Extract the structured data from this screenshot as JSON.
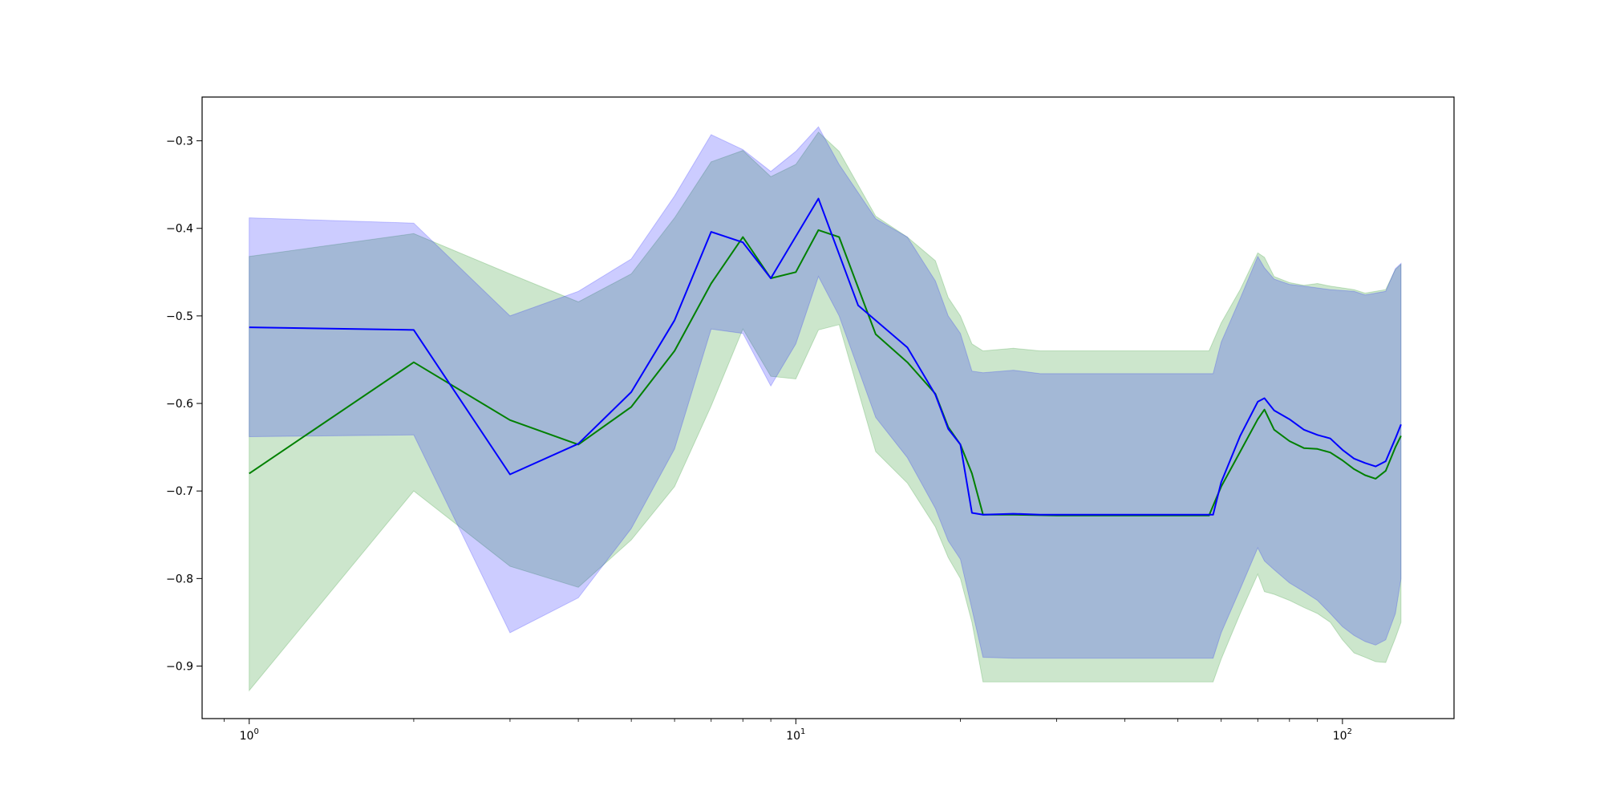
{
  "chart_data": {
    "type": "area",
    "xscale": "log",
    "xlim": [
      0.82,
      160
    ],
    "ylim": [
      -0.96,
      -0.25
    ],
    "x_ticks": [
      {
        "value": 1,
        "base": "10",
        "exp": "0"
      },
      {
        "value": 10,
        "base": "10",
        "exp": "1"
      },
      {
        "value": 100,
        "base": "10",
        "exp": "2"
      }
    ],
    "y_ticks": [
      {
        "value": -0.3,
        "label": "−0.3"
      },
      {
        "value": -0.4,
        "label": "−0.4"
      },
      {
        "value": -0.5,
        "label": "−0.5"
      },
      {
        "value": -0.6,
        "label": "−0.6"
      },
      {
        "value": -0.7,
        "label": "−0.7"
      },
      {
        "value": -0.8,
        "label": "−0.8"
      },
      {
        "value": -0.9,
        "label": "−0.9"
      }
    ],
    "grid": false,
    "series": [
      {
        "color": "#008000",
        "fill_color": "#008000",
        "fill_opacity": 0.2,
        "line": [
          [
            1,
            -0.68
          ],
          [
            2,
            -0.553
          ],
          [
            3,
            -0.619
          ],
          [
            4,
            -0.647
          ],
          [
            5,
            -0.604
          ],
          [
            6,
            -0.54
          ],
          [
            7,
            -0.463
          ],
          [
            8,
            -0.41
          ],
          [
            9,
            -0.457
          ],
          [
            10,
            -0.45
          ],
          [
            11,
            -0.402
          ],
          [
            12,
            -0.41
          ],
          [
            14,
            -0.521
          ],
          [
            16,
            -0.553
          ],
          [
            18,
            -0.589
          ],
          [
            19,
            -0.627
          ],
          [
            20,
            -0.647
          ],
          [
            21,
            -0.68
          ],
          [
            22,
            -0.727
          ],
          [
            25,
            -0.727
          ],
          [
            30,
            -0.728
          ],
          [
            40,
            -0.728
          ],
          [
            50,
            -0.728
          ],
          [
            57,
            -0.728
          ],
          [
            60,
            -0.695
          ],
          [
            65,
            -0.655
          ],
          [
            70,
            -0.618
          ],
          [
            72,
            -0.607
          ],
          [
            75,
            -0.63
          ],
          [
            80,
            -0.643
          ],
          [
            85,
            -0.651
          ],
          [
            90,
            -0.652
          ],
          [
            95,
            -0.656
          ],
          [
            100,
            -0.665
          ],
          [
            105,
            -0.675
          ],
          [
            110,
            -0.682
          ],
          [
            115,
            -0.686
          ],
          [
            120,
            -0.677
          ],
          [
            125,
            -0.65
          ],
          [
            128,
            -0.637
          ]
        ],
        "upper": [
          [
            1,
            -0.432
          ],
          [
            2,
            -0.406
          ],
          [
            3,
            -0.452
          ],
          [
            4,
            -0.484
          ],
          [
            5,
            -0.452
          ],
          [
            6,
            -0.388
          ],
          [
            7,
            -0.324
          ],
          [
            8,
            -0.311
          ],
          [
            9,
            -0.341
          ],
          [
            10,
            -0.327
          ],
          [
            11,
            -0.29
          ],
          [
            12,
            -0.312
          ],
          [
            14,
            -0.386
          ],
          [
            16,
            -0.41
          ],
          [
            18,
            -0.437
          ],
          [
            19,
            -0.479
          ],
          [
            20,
            -0.5
          ],
          [
            21,
            -0.532
          ],
          [
            22,
            -0.54
          ],
          [
            25,
            -0.537
          ],
          [
            28,
            -0.54
          ],
          [
            40,
            -0.54
          ],
          [
            50,
            -0.54
          ],
          [
            57,
            -0.54
          ],
          [
            60,
            -0.508
          ],
          [
            65,
            -0.47
          ],
          [
            70,
            -0.428
          ],
          [
            72,
            -0.433
          ],
          [
            75,
            -0.455
          ],
          [
            80,
            -0.462
          ],
          [
            85,
            -0.465
          ],
          [
            90,
            -0.463
          ],
          [
            95,
            -0.466
          ],
          [
            100,
            -0.468
          ],
          [
            105,
            -0.47
          ],
          [
            110,
            -0.474
          ],
          [
            115,
            -0.472
          ],
          [
            120,
            -0.47
          ],
          [
            125,
            -0.447
          ],
          [
            128,
            -0.441
          ]
        ],
        "lower": [
          [
            1,
            -0.928
          ],
          [
            2,
            -0.7
          ],
          [
            3,
            -0.786
          ],
          [
            4,
            -0.81
          ],
          [
            5,
            -0.756
          ],
          [
            6,
            -0.695
          ],
          [
            7,
            -0.603
          ],
          [
            8,
            -0.515
          ],
          [
            9,
            -0.569
          ],
          [
            10,
            -0.572
          ],
          [
            11,
            -0.516
          ],
          [
            12,
            -0.51
          ],
          [
            14,
            -0.655
          ],
          [
            16,
            -0.691
          ],
          [
            18,
            -0.741
          ],
          [
            19,
            -0.776
          ],
          [
            20,
            -0.8
          ],
          [
            21,
            -0.85
          ],
          [
            22,
            -0.918
          ],
          [
            25,
            -0.918
          ],
          [
            40,
            -0.918
          ],
          [
            50,
            -0.918
          ],
          [
            58,
            -0.918
          ],
          [
            60,
            -0.892
          ],
          [
            65,
            -0.84
          ],
          [
            70,
            -0.795
          ],
          [
            72,
            -0.815
          ],
          [
            75,
            -0.818
          ],
          [
            80,
            -0.825
          ],
          [
            85,
            -0.833
          ],
          [
            90,
            -0.84
          ],
          [
            95,
            -0.85
          ],
          [
            100,
            -0.87
          ],
          [
            105,
            -0.885
          ],
          [
            110,
            -0.89
          ],
          [
            115,
            -0.895
          ],
          [
            120,
            -0.896
          ],
          [
            125,
            -0.868
          ],
          [
            128,
            -0.85
          ]
        ]
      },
      {
        "color": "#0000ff",
        "fill_color": "#0000ff",
        "fill_opacity": 0.2,
        "line": [
          [
            1,
            -0.513
          ],
          [
            2,
            -0.516
          ],
          [
            3,
            -0.681
          ],
          [
            4,
            -0.646
          ],
          [
            5,
            -0.587
          ],
          [
            6,
            -0.505
          ],
          [
            7,
            -0.404
          ],
          [
            8,
            -0.416
          ],
          [
            9,
            -0.457
          ],
          [
            11,
            -0.366
          ],
          [
            13,
            -0.488
          ],
          [
            16,
            -0.536
          ],
          [
            18,
            -0.59
          ],
          [
            19,
            -0.629
          ],
          [
            20,
            -0.647
          ],
          [
            21,
            -0.725
          ],
          [
            22,
            -0.727
          ],
          [
            25,
            -0.726
          ],
          [
            28,
            -0.727
          ],
          [
            40,
            -0.727
          ],
          [
            50,
            -0.727
          ],
          [
            58,
            -0.727
          ],
          [
            60,
            -0.69
          ],
          [
            65,
            -0.637
          ],
          [
            70,
            -0.598
          ],
          [
            72,
            -0.594
          ],
          [
            75,
            -0.608
          ],
          [
            80,
            -0.618
          ],
          [
            85,
            -0.63
          ],
          [
            90,
            -0.636
          ],
          [
            95,
            -0.64
          ],
          [
            100,
            -0.653
          ],
          [
            105,
            -0.663
          ],
          [
            110,
            -0.668
          ],
          [
            115,
            -0.672
          ],
          [
            120,
            -0.666
          ],
          [
            125,
            -0.64
          ],
          [
            128,
            -0.624
          ]
        ],
        "upper": [
          [
            1,
            -0.388
          ],
          [
            2,
            -0.394
          ],
          [
            3,
            -0.5
          ],
          [
            4,
            -0.472
          ],
          [
            5,
            -0.435
          ],
          [
            6,
            -0.363
          ],
          [
            7,
            -0.293
          ],
          [
            8,
            -0.31
          ],
          [
            9,
            -0.335
          ],
          [
            10,
            -0.312
          ],
          [
            11,
            -0.284
          ],
          [
            12,
            -0.327
          ],
          [
            14,
            -0.389
          ],
          [
            16,
            -0.41
          ],
          [
            18,
            -0.46
          ],
          [
            19,
            -0.5
          ],
          [
            20,
            -0.52
          ],
          [
            21,
            -0.563
          ],
          [
            22,
            -0.565
          ],
          [
            25,
            -0.562
          ],
          [
            28,
            -0.566
          ],
          [
            40,
            -0.566
          ],
          [
            50,
            -0.566
          ],
          [
            58,
            -0.566
          ],
          [
            60,
            -0.53
          ],
          [
            65,
            -0.48
          ],
          [
            70,
            -0.432
          ],
          [
            72,
            -0.445
          ],
          [
            75,
            -0.458
          ],
          [
            80,
            -0.464
          ],
          [
            85,
            -0.466
          ],
          [
            90,
            -0.468
          ],
          [
            95,
            -0.47
          ],
          [
            100,
            -0.471
          ],
          [
            105,
            -0.472
          ],
          [
            110,
            -0.476
          ],
          [
            115,
            -0.474
          ],
          [
            120,
            -0.472
          ],
          [
            125,
            -0.446
          ],
          [
            128,
            -0.44
          ]
        ],
        "lower": [
          [
            1,
            -0.638
          ],
          [
            2,
            -0.636
          ],
          [
            3,
            -0.862
          ],
          [
            4,
            -0.822
          ],
          [
            5,
            -0.743
          ],
          [
            6,
            -0.652
          ],
          [
            7,
            -0.515
          ],
          [
            8,
            -0.52
          ],
          [
            9,
            -0.58
          ],
          [
            10,
            -0.532
          ],
          [
            11,
            -0.455
          ],
          [
            12,
            -0.5
          ],
          [
            14,
            -0.616
          ],
          [
            16,
            -0.662
          ],
          [
            18,
            -0.72
          ],
          [
            19,
            -0.757
          ],
          [
            20,
            -0.778
          ],
          [
            21,
            -0.835
          ],
          [
            22,
            -0.89
          ],
          [
            25,
            -0.891
          ],
          [
            40,
            -0.891
          ],
          [
            50,
            -0.891
          ],
          [
            58,
            -0.891
          ],
          [
            60,
            -0.862
          ],
          [
            65,
            -0.812
          ],
          [
            70,
            -0.765
          ],
          [
            72,
            -0.78
          ],
          [
            75,
            -0.79
          ],
          [
            80,
            -0.805
          ],
          [
            85,
            -0.815
          ],
          [
            90,
            -0.825
          ],
          [
            95,
            -0.84
          ],
          [
            100,
            -0.855
          ],
          [
            105,
            -0.865
          ],
          [
            110,
            -0.872
          ],
          [
            115,
            -0.876
          ],
          [
            120,
            -0.87
          ],
          [
            125,
            -0.84
          ],
          [
            128,
            -0.8
          ]
        ]
      }
    ]
  }
}
